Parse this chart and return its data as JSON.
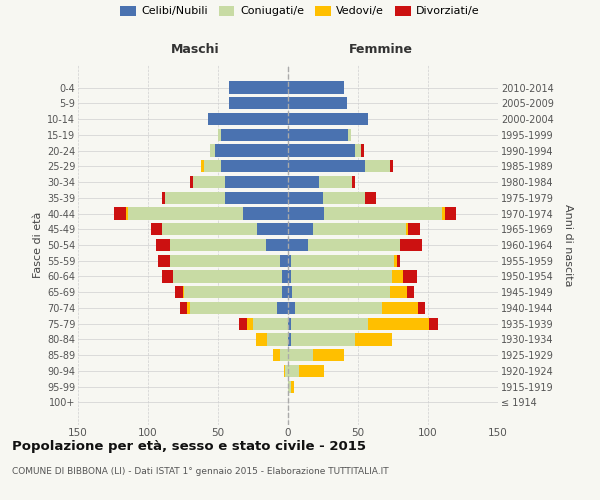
{
  "age_groups": [
    "100+",
    "95-99",
    "90-94",
    "85-89",
    "80-84",
    "75-79",
    "70-74",
    "65-69",
    "60-64",
    "55-59",
    "50-54",
    "45-49",
    "40-44",
    "35-39",
    "30-34",
    "25-29",
    "20-24",
    "15-19",
    "10-14",
    "5-9",
    "0-4"
  ],
  "birth_years": [
    "≤ 1914",
    "1915-1919",
    "1920-1924",
    "1925-1929",
    "1930-1934",
    "1935-1939",
    "1940-1944",
    "1945-1949",
    "1950-1954",
    "1955-1959",
    "1960-1964",
    "1965-1969",
    "1970-1974",
    "1975-1979",
    "1980-1984",
    "1985-1989",
    "1990-1994",
    "1995-1999",
    "2000-2004",
    "2005-2009",
    "2010-2014"
  ],
  "maschi": {
    "celibi": [
      0,
      0,
      0,
      0,
      0,
      0,
      8,
      4,
      4,
      6,
      16,
      22,
      32,
      45,
      45,
      48,
      52,
      48,
      57,
      42,
      42
    ],
    "coniugati": [
      0,
      0,
      2,
      6,
      15,
      25,
      62,
      70,
      78,
      78,
      68,
      68,
      82,
      43,
      23,
      12,
      4,
      2,
      0,
      0,
      0
    ],
    "vedovi": [
      0,
      0,
      1,
      5,
      8,
      4,
      2,
      1,
      0,
      0,
      0,
      0,
      2,
      0,
      0,
      2,
      0,
      0,
      0,
      0,
      0
    ],
    "divorziati": [
      0,
      0,
      0,
      0,
      0,
      6,
      5,
      6,
      8,
      9,
      10,
      8,
      8,
      2,
      2,
      0,
      0,
      0,
      0,
      0,
      0
    ]
  },
  "femmine": {
    "nubili": [
      0,
      0,
      0,
      0,
      2,
      2,
      5,
      3,
      2,
      2,
      14,
      18,
      26,
      25,
      22,
      55,
      48,
      43,
      57,
      42,
      40
    ],
    "coniugate": [
      0,
      2,
      8,
      18,
      46,
      55,
      62,
      70,
      72,
      74,
      66,
      66,
      84,
      30,
      24,
      18,
      4,
      2,
      0,
      0,
      0
    ],
    "vedove": [
      0,
      2,
      18,
      22,
      26,
      44,
      26,
      12,
      8,
      2,
      0,
      2,
      2,
      0,
      0,
      0,
      0,
      0,
      0,
      0,
      0
    ],
    "divorziate": [
      0,
      0,
      0,
      0,
      0,
      6,
      5,
      5,
      10,
      2,
      16,
      8,
      8,
      8,
      2,
      2,
      2,
      0,
      0,
      0,
      0
    ]
  },
  "colors": {
    "celibi": "#4a72b0",
    "coniugati": "#c8dba4",
    "vedovi": "#ffbf00",
    "divorziati": "#cc1111"
  },
  "xlim": 150,
  "title": "Popolazione per età, sesso e stato civile - 2015",
  "subtitle": "COMUNE DI BIBBONA (LI) - Dati ISTAT 1° gennaio 2015 - Elaborazione TUTTITALIA.IT",
  "ylabel": "Fasce di età",
  "ylabel_right": "Anni di nascita",
  "label_maschi": "Maschi",
  "label_femmine": "Femmine",
  "legend_labels": [
    "Celibi/Nubili",
    "Coniugati/e",
    "Vedovi/e",
    "Divorziati/e"
  ],
  "background_color": "#f7f7f2"
}
